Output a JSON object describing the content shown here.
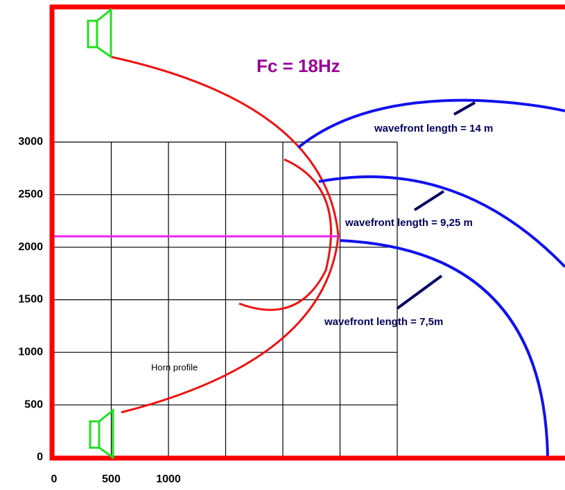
{
  "title": "Fc = 18Hz",
  "annotations": [
    "wavefront length  = 14 m",
    "wavefront length  = 9,25 m",
    "wavefront length  = 7,5m",
    "Horn profile"
  ],
  "axes": {
    "yticks": [
      0,
      500,
      1000,
      1500,
      2000,
      2500,
      3000
    ],
    "xticks": [
      0,
      500,
      1000
    ]
  }
}
